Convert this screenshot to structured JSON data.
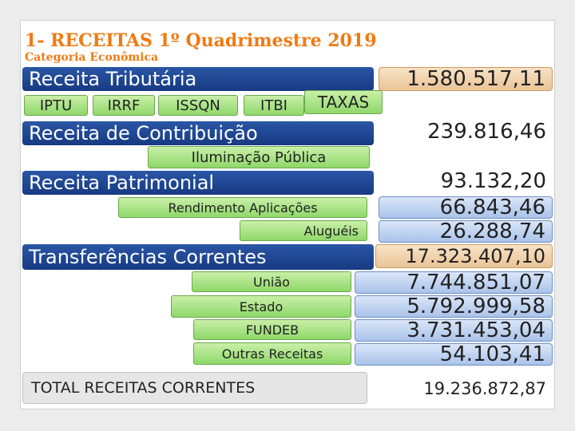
{
  "header": {
    "title": "1- RECEITAS  1º Quadrimestre 2019",
    "subtitle": "Categoria Econômica"
  },
  "rows": {
    "tributaria": {
      "label": "Receita Tributária",
      "value": "1.580.517,11"
    },
    "tributaria_items": [
      "IPTU",
      "IRRF",
      "ISSQN",
      "ITBI",
      "TAXAS"
    ],
    "contribuicao": {
      "label": "Receita de Contribuição",
      "value": "239.816,46"
    },
    "iluminacao": {
      "label": "Iluminação Pública"
    },
    "patrimonial": {
      "label": "Receita Patrimonial",
      "value": "93.132,20"
    },
    "rendimento": {
      "label": "Rendimento Aplicações",
      "value": "66.843,46"
    },
    "alugueis": {
      "label": "Aluguéis",
      "value": "26.288,74"
    },
    "transferencias": {
      "label": "Transferências Correntes",
      "value": "17.323.407,10"
    },
    "uniao": {
      "label": "União",
      "value": "7.744.851,07"
    },
    "estado": {
      "label": "Estado",
      "value": "5.792.999,58"
    },
    "fundeb": {
      "label": "FUNDEB",
      "value": "3.731.453,04"
    },
    "outras": {
      "label": "Outras Receitas",
      "value": "54.103,41"
    },
    "total": {
      "label": "TOTAL RECEITAS CORRENTES",
      "value": "19.236.872,87"
    }
  },
  "colors": {
    "title_orange": "#f07a12",
    "bar_blue": "#1f4a96",
    "chip_green": "#a8e38a",
    "value_tan": "#efd2ad",
    "value_blue": "#bcd0ee"
  }
}
